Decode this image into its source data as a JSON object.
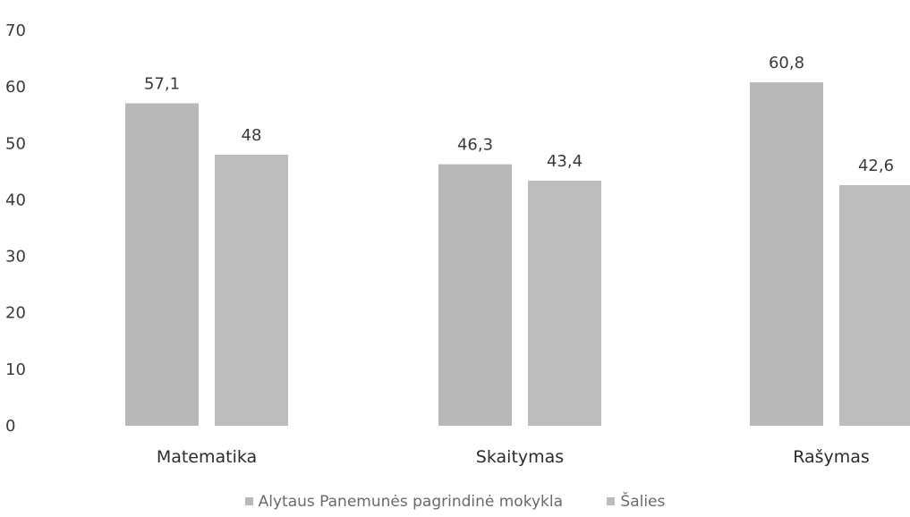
{
  "chart_data": {
    "type": "bar",
    "categories": [
      "Matematika",
      "Skaitymas",
      "Rašymas"
    ],
    "series": [
      {
        "name": "Alytaus Panemunės pagrindinė mokykla",
        "values": [
          57.1,
          46.3,
          60.8
        ],
        "labels": [
          "57,1",
          "46,3",
          "60,8"
        ],
        "color": "#b8b8b8"
      },
      {
        "name": "Šalies",
        "values": [
          48,
          43.4,
          42.6
        ],
        "labels": [
          "48",
          "43,4",
          "42,6"
        ],
        "color": "#bdbdbd"
      }
    ],
    "yticks": [
      0,
      10,
      20,
      30,
      40,
      50,
      60,
      70
    ],
    "ylim": [
      0,
      70
    ],
    "title": "",
    "xlabel": "",
    "ylabel": "",
    "grid": false,
    "legend_position": "bottom"
  }
}
